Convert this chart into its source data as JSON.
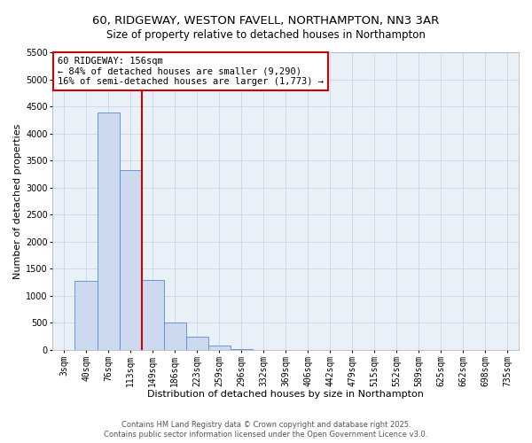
{
  "title": "60, RIDGEWAY, WESTON FAVELL, NORTHAMPTON, NN3 3AR",
  "subtitle": "Size of property relative to detached houses in Northampton",
  "xlabel": "Distribution of detached houses by size in Northampton",
  "ylabel": "Number of detached properties",
  "bg_color": "#eaf0f8",
  "bar_color": "#ccd9ee",
  "bar_edge_color": "#5b8bd0",
  "categories": [
    "3sqm",
    "40sqm",
    "76sqm",
    "113sqm",
    "149sqm",
    "186sqm",
    "223sqm",
    "259sqm",
    "296sqm",
    "332sqm",
    "369sqm",
    "406sqm",
    "442sqm",
    "479sqm",
    "515sqm",
    "552sqm",
    "589sqm",
    "625sqm",
    "662sqm",
    "698sqm",
    "735sqm"
  ],
  "values": [
    0,
    1270,
    4380,
    3330,
    1290,
    500,
    240,
    80,
    20,
    0,
    0,
    0,
    0,
    0,
    0,
    0,
    0,
    0,
    0,
    0,
    0
  ],
  "ylim": [
    0,
    5500
  ],
  "yticks": [
    0,
    500,
    1000,
    1500,
    2000,
    2500,
    3000,
    3500,
    4000,
    4500,
    5000,
    5500
  ],
  "vline_pos": 3.5,
  "annotation_title": "60 RIDGEWAY: 156sqm",
  "annotation_line1": "← 84% of detached houses are smaller (9,290)",
  "annotation_line2": "16% of semi-detached houses are larger (1,773) →",
  "annotation_box_color": "#ffffff",
  "annotation_box_edge_color": "#cc0000",
  "footer1": "Contains HM Land Registry data © Crown copyright and database right 2025.",
  "footer2": "Contains public sector information licensed under the Open Government Licence v3.0.",
  "grid_color": "#c5cfe0",
  "vline_color": "#cc0000",
  "title_fontsize": 9.5,
  "subtitle_fontsize": 8.5,
  "axis_label_fontsize": 8,
  "tick_fontsize": 7,
  "annotation_fontsize": 7.5,
  "footer_fontsize": 6
}
